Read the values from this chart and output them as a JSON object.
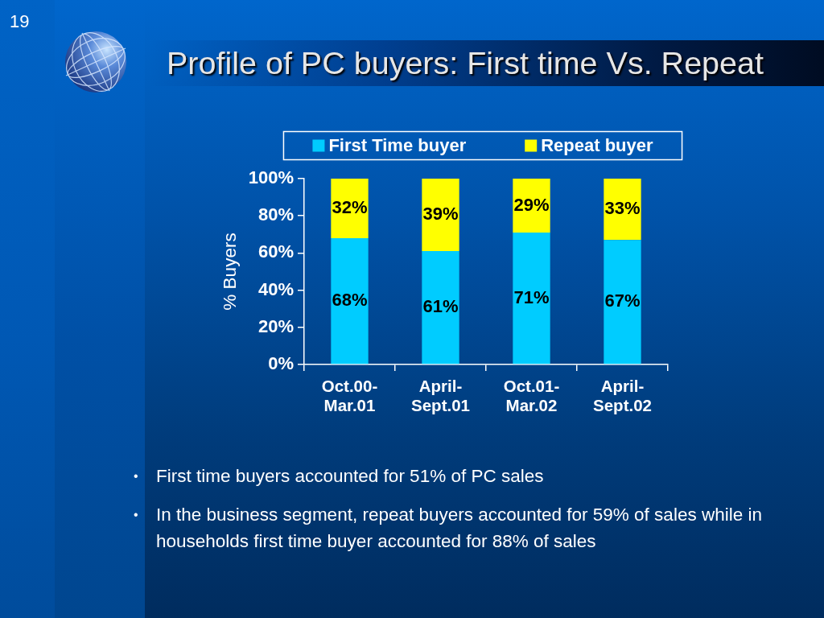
{
  "chart_data": {
    "type": "bar",
    "title": "Profile of PC buyers: First time Vs. Repeat",
    "ylabel": "% Buyers",
    "categories": [
      "Oct.00-Mar.01",
      "April-Sept.01",
      "Oct.01-Mar.02",
      "April-Sept.02"
    ],
    "series": [
      {
        "name": "First Time buyer",
        "color": "#00ccff",
        "values": [
          68,
          61,
          71,
          67
        ],
        "value_labels": [
          "68%",
          "61%",
          "71%",
          "67%"
        ]
      },
      {
        "name": "Repeat buyer",
        "color": "#ffff00",
        "values": [
          32,
          39,
          29,
          33
        ],
        "value_labels": [
          "32%",
          "39%",
          "29%",
          "33%"
        ]
      }
    ],
    "stacked": true,
    "ylim": [
      0,
      100
    ],
    "yticks": [
      {
        "value": 0,
        "label": "0%"
      },
      {
        "value": 20,
        "label": "20%"
      },
      {
        "value": 40,
        "label": "40%"
      },
      {
        "value": 60,
        "label": "60%"
      },
      {
        "value": 80,
        "label": "80%"
      },
      {
        "value": 100,
        "label": "100%"
      }
    ],
    "legend": "top",
    "annotations": [
      "19",
      "• First time buyers accounted for 51% of PC sales",
      "• In the business segment, repeat buyers accounted for 59% of sales while in households first time buyer accounted for 88% of sales"
    ]
  }
}
